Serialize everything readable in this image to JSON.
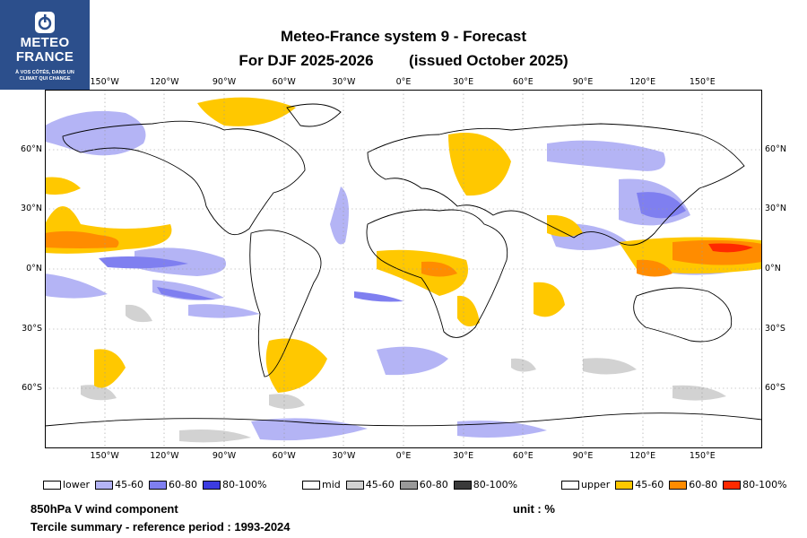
{
  "logo": {
    "brand_line1": "METEO",
    "brand_line2": "FRANCE",
    "tagline_line1": "À VOS CÔTÉS, DANS UN",
    "tagline_line2": "CLIMAT QUI CHANGE"
  },
  "title": {
    "line1": "Meteo-France system 9  -  Forecast",
    "line2a": "For DJF 2025-2026",
    "line2b": "(issued October 2025)"
  },
  "axes": {
    "lon_labels": [
      "150°W",
      "120°W",
      "90°W",
      "60°W",
      "30°W",
      "0°E",
      "30°E",
      "60°E",
      "90°E",
      "120°E",
      "150°E"
    ],
    "lat_labels": [
      "60°N",
      "30°N",
      "0°N",
      "30°S",
      "60°S"
    ]
  },
  "legend": {
    "lower": {
      "label": "lower",
      "bins": [
        "45-60",
        "60-80",
        "80-100%"
      ],
      "colors": [
        "#b4b4f5",
        "#7f7ff0",
        "#3c3ce0"
      ]
    },
    "mid": {
      "label": "mid",
      "bins": [
        "45-60",
        "60-80",
        "80-100%"
      ],
      "colors": [
        "#d2d2d2",
        "#999999",
        "#3a3a3a"
      ]
    },
    "upper": {
      "label": "upper",
      "bins": [
        "45-60",
        "60-80",
        "80-100%"
      ],
      "colors": [
        "#ffc800",
        "#ff8c00",
        "#ff2a00"
      ]
    }
  },
  "footer": {
    "variable": "850hPa V wind component",
    "unit": "unit : %",
    "summary": "Tercile summary - reference period : 1993-2024"
  }
}
